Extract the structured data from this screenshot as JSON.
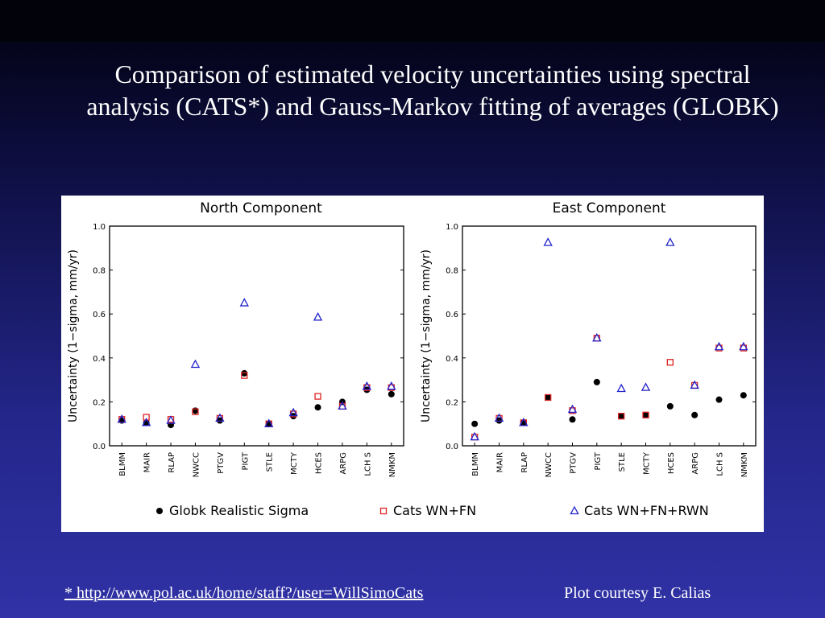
{
  "slide": {
    "title": "Comparison of estimated velocity uncertainties using spectral analysis (CATS*) and Gauss-Markov fitting of averages (GLOBK)",
    "footnote_link": "*  http://www.pol.ac.uk/home/staff?/user=WillSimoCats",
    "credit": "Plot courtesy E. Calias"
  },
  "colors": {
    "globk": "#000000",
    "cats_wn_fn": "#dd2222",
    "cats_wn_fn_rwn": "#2222cc"
  },
  "legend": {
    "placement": "bottom",
    "items": [
      {
        "label": "Globk Realistic Sigma",
        "marker": "filled-circle"
      },
      {
        "label": "Cats WN+FN",
        "marker": "open-square"
      },
      {
        "label": "Cats WN+FN+RWN",
        "marker": "open-triangle"
      }
    ]
  },
  "chart_data": [
    {
      "type": "scatter",
      "title": "North Component",
      "xlabel": "",
      "ylabel": "Uncertainty (1−sigma, mm/yr)",
      "ylim": [
        0,
        1.0
      ],
      "yticks": [
        "0.0",
        "0.2",
        "0.4",
        "0.6",
        "0.8",
        "1.0"
      ],
      "categories": [
        "BLMM",
        "MAIR",
        "RLAP",
        "NWCC",
        "PTGV",
        "PIGT",
        "STLE",
        "MCTY",
        "HCES",
        "ARPG",
        "LCH S",
        "NMKM"
      ],
      "series": [
        {
          "name": "Globk Realistic Sigma",
          "values": [
            0.115,
            0.105,
            0.095,
            0.16,
            0.115,
            0.33,
            0.1,
            0.135,
            0.175,
            0.2,
            0.255,
            0.235
          ]
        },
        {
          "name": "Cats WN+FN",
          "values": [
            0.12,
            0.13,
            0.12,
            0.155,
            0.125,
            0.32,
            0.1,
            0.145,
            0.225,
            0.18,
            0.265,
            0.265
          ]
        },
        {
          "name": "Cats WN+FN+RWN",
          "values": [
            0.12,
            0.105,
            0.115,
            0.37,
            0.125,
            0.65,
            0.1,
            0.15,
            0.585,
            0.18,
            0.27,
            0.27
          ]
        }
      ]
    },
    {
      "type": "scatter",
      "title": "East Component",
      "xlabel": "",
      "ylabel": "Uncertainty (1−sigma, mm/yr)",
      "ylim": [
        0,
        1.0
      ],
      "yticks": [
        "0.0",
        "0.2",
        "0.4",
        "0.6",
        "0.8",
        "1.0"
      ],
      "categories": [
        "BLMM",
        "MAIR",
        "RLAP",
        "NWCC",
        "PTGV",
        "PIGT",
        "STLE",
        "MCTY",
        "HCES",
        "ARPG",
        "LCH S",
        "NMKM"
      ],
      "series": [
        {
          "name": "Globk Realistic Sigma",
          "values": [
            0.1,
            0.115,
            0.105,
            0.22,
            0.12,
            0.29,
            0.135,
            0.14,
            0.18,
            0.14,
            0.21,
            0.23
          ]
        },
        {
          "name": "Cats WN+FN",
          "values": [
            0.04,
            0.125,
            0.105,
            0.22,
            0.16,
            0.49,
            0.135,
            0.14,
            0.38,
            0.275,
            0.445,
            0.445
          ]
        },
        {
          "name": "Cats WN+FN+RWN",
          "values": [
            0.04,
            0.125,
            0.105,
            0.925,
            0.165,
            0.49,
            0.26,
            0.265,
            0.925,
            0.275,
            0.45,
            0.45
          ]
        }
      ]
    }
  ]
}
